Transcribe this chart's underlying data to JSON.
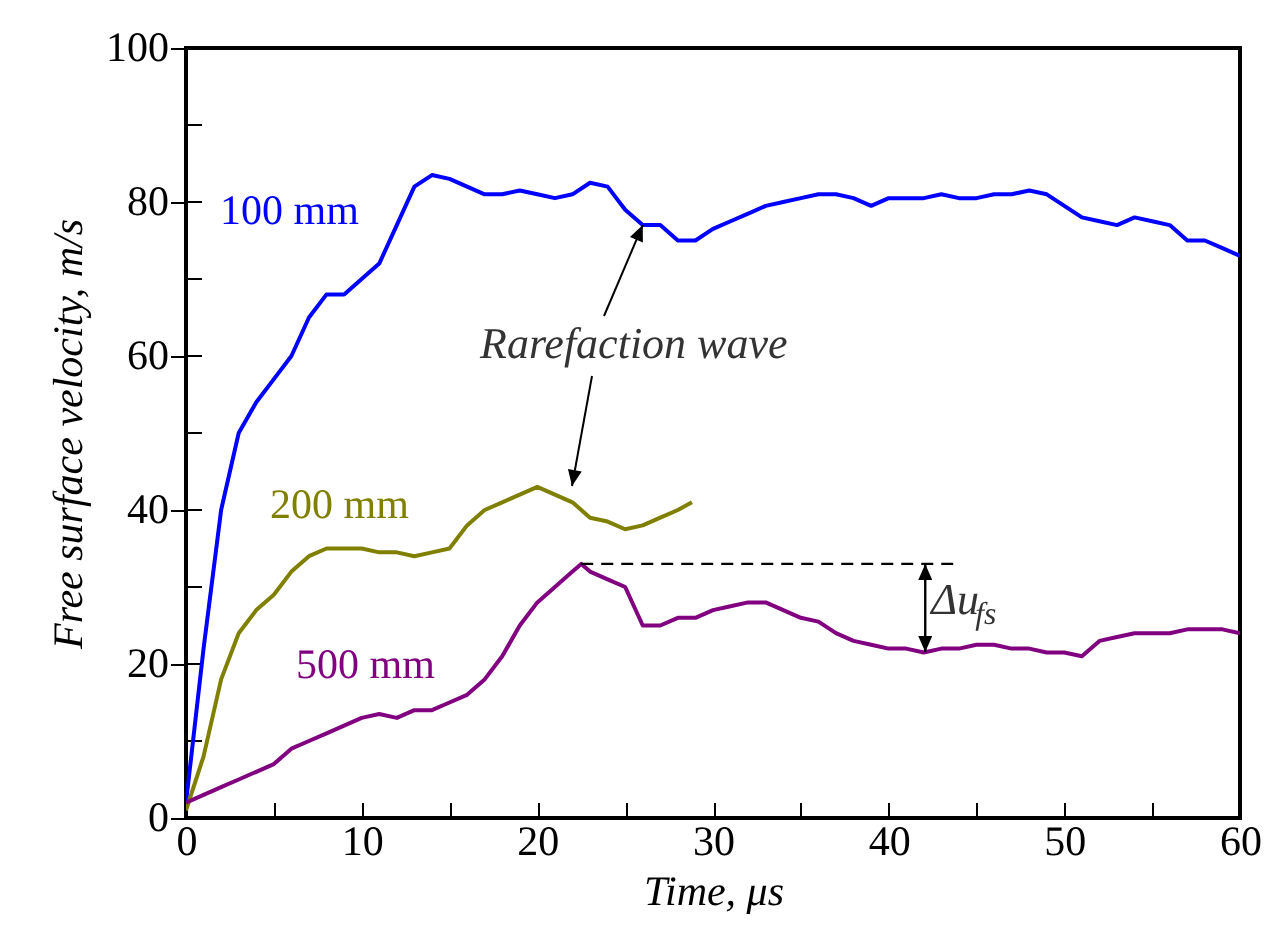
{
  "chart_data": {
    "type": "line",
    "xlabel": "Time, μs",
    "ylabel": "Free surface velocity, m/s",
    "xlim": [
      0,
      60
    ],
    "ylim": [
      0,
      100
    ],
    "xticks": [
      0,
      {
        "value": 5,
        "label": null
      },
      10,
      {
        "value": 15,
        "label": null
      },
      20,
      {
        "value": 25,
        "label": null
      },
      30,
      {
        "value": 35,
        "label": null
      },
      40,
      {
        "value": 45,
        "label": null
      },
      50,
      {
        "value": 55,
        "label": null
      },
      60
    ],
    "yticks": [
      0,
      {
        "value": 10,
        "label": null
      },
      20,
      {
        "value": 30,
        "label": null
      },
      40,
      {
        "value": 50,
        "label": null
      },
      60,
      {
        "value": 70,
        "label": null
      },
      80,
      {
        "value": 90,
        "label": null
      },
      100
    ],
    "grid": false,
    "legend": false,
    "annotations": [
      {
        "text": "Rarefaction wave",
        "x": 26,
        "y": 77
      },
      {
        "text": "Δu$_{fs}$",
        "x": 22.5,
        "y": 33
      }
    ],
    "series": [
      {
        "name": "100 mm",
        "color": "#0000ff",
        "x": [
          0,
          1,
          2,
          3,
          4,
          5,
          6,
          7,
          8,
          9,
          10,
          11,
          12,
          13,
          14,
          15,
          16,
          17,
          18,
          19,
          20,
          21,
          22,
          23,
          24,
          25,
          26,
          27,
          28,
          29,
          30,
          31,
          32,
          33,
          34,
          35,
          36,
          37,
          38,
          39,
          40,
          41,
          42,
          43,
          44,
          45,
          46,
          47,
          48,
          49,
          50,
          51,
          52,
          53,
          54,
          55,
          56,
          57,
          58,
          59,
          60
        ],
        "values": [
          2,
          22,
          40,
          50,
          54,
          57,
          60,
          65,
          68,
          68,
          70,
          72,
          77,
          82,
          83.5,
          83,
          82,
          81,
          81,
          81.5,
          81,
          80.5,
          81,
          82.5,
          82,
          79,
          77,
          77,
          75,
          75,
          76.5,
          77.5,
          78.5,
          79.5,
          80,
          80.5,
          81,
          81,
          80.5,
          79.5,
          80.5,
          80.5,
          80.5,
          81,
          80.5,
          80.5,
          81,
          81,
          81.5,
          81,
          79.5,
          78,
          77.5,
          77,
          78,
          77.5,
          77,
          75,
          75,
          74,
          73
        ]
      },
      {
        "name": "200 mm",
        "color": "#808000",
        "x": [
          0,
          1,
          2,
          3,
          4,
          5,
          6,
          7,
          8,
          9,
          10,
          11,
          12,
          13,
          14,
          15,
          16,
          17,
          18,
          19,
          20,
          21,
          22,
          23,
          24,
          25,
          26,
          27,
          28,
          28.8
        ],
        "values": [
          1,
          8,
          18,
          24,
          27,
          29,
          32,
          34,
          35,
          35,
          35,
          34.5,
          34.5,
          34,
          34.5,
          35,
          38,
          40,
          41,
          42,
          43,
          42,
          41,
          39,
          38.5,
          37.5,
          38,
          39,
          40,
          41
        ]
      },
      {
        "name": "500 mm",
        "color": "#800080",
        "x": [
          0,
          1,
          2,
          3,
          4,
          5,
          6,
          7,
          8,
          9,
          10,
          11,
          12,
          13,
          14,
          15,
          16,
          17,
          18,
          19,
          20,
          21,
          22,
          22.5,
          23,
          24,
          25,
          26,
          27,
          28,
          29,
          30,
          31,
          32,
          33,
          34,
          35,
          36,
          37,
          38,
          39,
          40,
          41,
          42,
          43,
          44,
          45,
          46,
          47,
          48,
          49,
          50,
          51,
          52,
          53,
          54,
          55,
          56,
          57,
          58,
          59,
          60
        ],
        "values": [
          2,
          3,
          4,
          5,
          6,
          7,
          9,
          10,
          11,
          12,
          13,
          13.5,
          13,
          14,
          14,
          15,
          16,
          18,
          21,
          25,
          28,
          30,
          32,
          33,
          32,
          31,
          30,
          25,
          25,
          26,
          26,
          27,
          27.5,
          28,
          28,
          27,
          26,
          25.5,
          24,
          23,
          22.5,
          22,
          22,
          21.5,
          22,
          22,
          22.5,
          22.5,
          22,
          22,
          21.5,
          21.5,
          21,
          23,
          23.5,
          24,
          24,
          24,
          24.5,
          24.5,
          24.5,
          24
        ]
      }
    ]
  }
}
